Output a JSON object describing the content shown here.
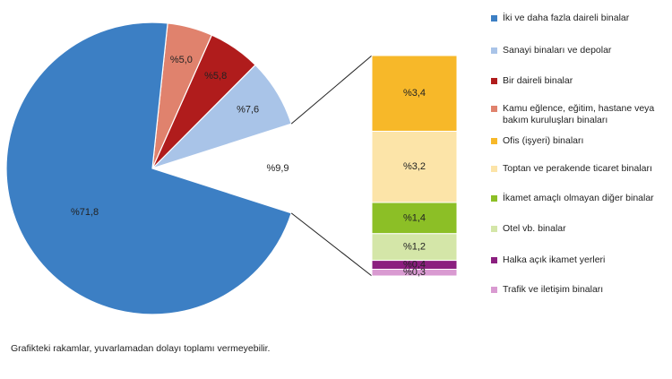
{
  "chart_data": {
    "type": "bar-of-pie",
    "pie": {
      "categories": [
        "İki ve daha fazla daireli binalar",
        "Sanayi binaları ve depolar",
        "Bir daireli binalar",
        "Kamu eğlence, eğitim, hastane veya bakım kuruluşları binaları"
      ],
      "values": [
        71.8,
        7.6,
        5.8,
        5.0
      ],
      "value_labels": [
        "%71,8",
        "%7,6",
        "%5,8",
        "%5,0"
      ],
      "colors": [
        "#3c7fc4",
        "#a9c4e8",
        "#b01c1c",
        "#e0826d"
      ]
    },
    "other": {
      "value": 9.9,
      "value_label": "%9,9"
    },
    "bar": {
      "categories": [
        "Ofis (işyeri) binaları",
        "Toptan ve perakende ticaret binaları",
        "İkamet amaçlı olmayan diğer binalar",
        "Otel vb. binalar",
        "Halka açık ikamet yerleri",
        "Trafik ve iletişim binaları"
      ],
      "values": [
        3.4,
        3.2,
        1.4,
        1.2,
        0.4,
        0.3
      ],
      "value_labels": [
        "%3,4",
        "%3,2",
        "%1,4",
        "%1,2",
        "%0,4",
        "%0,3"
      ],
      "colors": [
        "#f7b829",
        "#fce4a8",
        "#8cbf26",
        "#d4e6a8",
        "#8b1f7f",
        "#d99ad1"
      ]
    },
    "note": "Grafikteki rakamlar, yuvarlamadan dolayı toplamı vermeyebilir."
  }
}
